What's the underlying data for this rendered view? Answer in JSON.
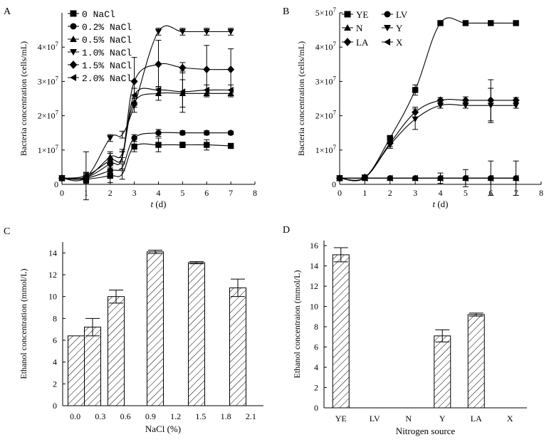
{
  "chart_data": [
    {
      "panel": "A",
      "type": "line",
      "xlabel_var": "t",
      "xlabel_unit": " (d)",
      "ylabel": "Bacteria concentration (cells/mL)",
      "x": [
        0,
        1,
        2,
        2.5,
        3,
        4,
        5,
        6,
        7
      ],
      "xlim": [
        0,
        8
      ],
      "ylim": [
        0,
        50000000
      ],
      "xticks": [
        "0",
        "1",
        "2",
        "3",
        "4",
        "5",
        "6",
        "7",
        "8"
      ],
      "yticks": [
        "0",
        "1×10⁷",
        "2×10⁷",
        "3×10⁷",
        "4×10⁷"
      ],
      "ytick_values": [
        0,
        10000000,
        20000000,
        30000000,
        40000000
      ],
      "legend_position": "top-left",
      "series": [
        {
          "name": "0 NaCl",
          "marker": "square",
          "values": [
            1800000,
            1500000,
            2500000,
            3000000,
            11000000,
            11500000,
            11500000,
            11500000,
            11200000
          ],
          "errors": [
            400000,
            800000,
            2000000,
            1500000,
            1500000,
            2000000,
            800000,
            1500000,
            600000
          ]
        },
        {
          "name": "0.2% NaCl",
          "marker": "circle",
          "values": [
            1800000,
            1800000,
            4000000,
            5000000,
            13500000,
            15000000,
            15000000,
            15000000,
            15000000
          ],
          "errors": [
            400000,
            1500000,
            1500000,
            1000000,
            1000000,
            1000000,
            600000,
            600000,
            500000
          ]
        },
        {
          "name": "0.5% NaCl",
          "marker": "triangle-up",
          "values": [
            1800000,
            2000000,
            8000000,
            9000000,
            24000000,
            26500000,
            26500000,
            26500000,
            26500000
          ],
          "errors": [
            400000,
            1500000,
            1500000,
            1200000,
            1500000,
            2000000,
            4000000,
            1000000,
            1000000
          ]
        },
        {
          "name": "1.0% NaCl",
          "marker": "triangle-down",
          "values": [
            1800000,
            2000000,
            13500000,
            14500000,
            23000000,
            44500000,
            44500000,
            44500000,
            44500000
          ],
          "errors": [
            400000,
            1000000,
            1000000,
            1000000,
            2000000,
            1000000,
            1000000,
            1000000,
            1000000
          ]
        },
        {
          "name": "1.5% NaCl",
          "marker": "diamond",
          "values": [
            1800000,
            2000000,
            6000000,
            8000000,
            30000000,
            35000000,
            34000000,
            33500000,
            33500000
          ],
          "errors": [
            400000,
            1500000,
            1500000,
            1500000,
            7000000,
            7000000,
            1500000,
            7000000,
            6000000
          ]
        },
        {
          "name": "2.0% NaCl",
          "marker": "triangle-left",
          "values": [
            1800000,
            2500000,
            7000000,
            8000000,
            26000000,
            27500000,
            27000000,
            27500000,
            27500000
          ],
          "errors": [
            400000,
            7000000,
            2000000,
            1500000,
            2000000,
            1000000,
            6000000,
            1500000,
            1500000
          ]
        }
      ]
    },
    {
      "panel": "B",
      "type": "line",
      "xlabel_var": "t",
      "xlabel_unit": " (d)",
      "ylabel": "Bacteria concentration (cells/mL)",
      "x": [
        0,
        1,
        2,
        3,
        4,
        5,
        6,
        7
      ],
      "xlim": [
        0,
        8
      ],
      "ylim": [
        0,
        50000000
      ],
      "xticks": [
        "0",
        "1",
        "2",
        "3",
        "4",
        "5",
        "6",
        "7",
        "8"
      ],
      "yticks": [
        "0",
        "1×10⁷",
        "2×10⁷",
        "3×10⁷",
        "4×10⁷",
        "5×10⁷"
      ],
      "ytick_values": [
        0,
        10000000,
        20000000,
        30000000,
        40000000,
        50000000
      ],
      "legend_position": "top-left",
      "series": [
        {
          "name": "YE",
          "marker": "square",
          "values": [
            1800000,
            2000000,
            13500000,
            27500000,
            47000000,
            47000000,
            47000000,
            47000000
          ],
          "errors": [
            300000,
            300000,
            500000,
            1500000,
            500000,
            500000,
            500000,
            500000
          ]
        },
        {
          "name": "LV",
          "marker": "circle",
          "values": [
            1800000,
            1800000,
            1800000,
            1800000,
            1800000,
            1800000,
            1800000,
            1800000
          ],
          "errors": [
            300000,
            300000,
            300000,
            300000,
            1500000,
            2500000,
            5000000,
            5000000
          ]
        },
        {
          "name": "N",
          "marker": "triangle-up",
          "values": [
            1800000,
            1800000,
            1800000,
            1800000,
            1800000,
            1800000,
            1800000,
            1800000
          ],
          "errors": [
            300000,
            300000,
            300000,
            300000,
            300000,
            300000,
            300000,
            300000
          ]
        },
        {
          "name": "Y",
          "marker": "triangle-down",
          "values": [
            1800000,
            2000000,
            11500000,
            19000000,
            23000000,
            23000000,
            23000000,
            23000000
          ],
          "errors": [
            300000,
            300000,
            1000000,
            3000000,
            800000,
            800000,
            5000000,
            800000
          ]
        },
        {
          "name": "LA",
          "marker": "diamond",
          "values": [
            1800000,
            2000000,
            12000000,
            21000000,
            24500000,
            24500000,
            24500000,
            24500000
          ],
          "errors": [
            300000,
            300000,
            1000000,
            1500000,
            800000,
            1000000,
            6000000,
            800000
          ]
        },
        {
          "name": "X",
          "marker": "triangle-left",
          "values": [
            1800000,
            1800000,
            1800000,
            1800000,
            1800000,
            1800000,
            1800000,
            1800000
          ],
          "errors": [
            300000,
            300000,
            300000,
            300000,
            300000,
            300000,
            300000,
            300000
          ]
        }
      ]
    },
    {
      "panel": "C",
      "type": "bar",
      "xlabel": "NaCl (%)",
      "ylabel": "Ethanol concentration (mmol/L)",
      "xticks": [
        "0.0",
        "0.3",
        "0.6",
        "0.9",
        "1.2",
        "1.5",
        "1.8",
        "2.1"
      ],
      "xtick_values": [
        0,
        0.3,
        0.6,
        0.9,
        1.2,
        1.5,
        1.8,
        2.1
      ],
      "xlim": [
        -0.15,
        2.25
      ],
      "ylim": [
        0,
        15
      ],
      "yticks": [
        "0",
        "2",
        "4",
        "6",
        "8",
        "10",
        "12",
        "14"
      ],
      "ytick_values": [
        0,
        2,
        4,
        6,
        8,
        10,
        12,
        14
      ],
      "bar_x": [
        0.0,
        0.2,
        0.5,
        1.0,
        1.5,
        2.0
      ],
      "values": [
        6.4,
        7.2,
        10.0,
        14.1,
        13.1,
        10.8
      ],
      "errors": [
        0.0,
        0.8,
        0.6,
        0.15,
        0.1,
        0.8
      ]
    },
    {
      "panel": "D",
      "type": "bar",
      "xlabel": "Nitrogen source",
      "ylabel": "Ethanol concentraion (mmol/L)",
      "categories": [
        "YE",
        "LV",
        "N",
        "Y",
        "LA",
        "X"
      ],
      "values": [
        15.1,
        0,
        0,
        7.1,
        9.2,
        0
      ],
      "errors": [
        0.7,
        0,
        0,
        0.6,
        0.15,
        0
      ],
      "ylim": [
        0,
        16.5
      ],
      "yticks": [
        "0",
        "2",
        "4",
        "6",
        "8",
        "10",
        "12",
        "14",
        "16"
      ],
      "ytick_values": [
        0,
        2,
        4,
        6,
        8,
        10,
        12,
        14,
        16
      ]
    }
  ]
}
